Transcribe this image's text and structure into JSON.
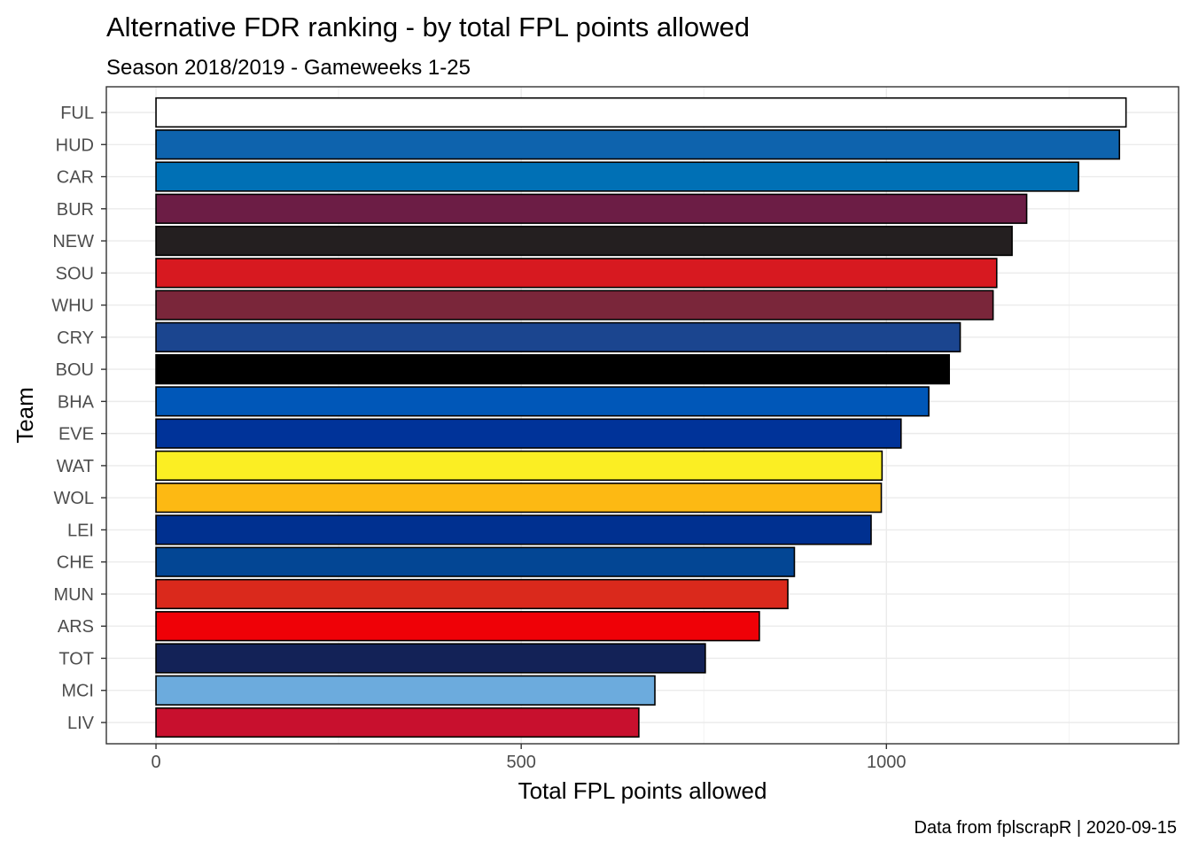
{
  "chart_data": {
    "type": "bar",
    "orientation": "horizontal",
    "title": "Alternative FDR ranking - by total FPL points allowed",
    "subtitle": "Season 2018/2019 - Gameweeks 1-25",
    "xlabel": "Total FPL points allowed",
    "ylabel": "Team",
    "caption": "Data from fplscrapR | 2020-09-15",
    "xlim": [
      -68,
      1400
    ],
    "x_ticks": [
      0,
      500,
      1000
    ],
    "grid": true,
    "legend": "none",
    "categories": [
      "FUL",
      "HUD",
      "CAR",
      "BUR",
      "NEW",
      "SOU",
      "WHU",
      "CRY",
      "BOU",
      "BHA",
      "EVE",
      "WAT",
      "WOL",
      "LEI",
      "CHE",
      "MUN",
      "ARS",
      "TOT",
      "MCI",
      "LIV"
    ],
    "values": [
      1328,
      1319,
      1263,
      1192,
      1172,
      1151,
      1146,
      1101,
      1086,
      1058,
      1020,
      994,
      993,
      979,
      874,
      865,
      826,
      752,
      683,
      661
    ],
    "colors": [
      "#ffffff",
      "#0e63ad",
      "#0070b5",
      "#6c1d45",
      "#241f20",
      "#d71920",
      "#7a263a",
      "#1b458f",
      "#000000",
      "#0057b8",
      "#003399",
      "#fbee23",
      "#fdb913",
      "#003090",
      "#034694",
      "#da291c",
      "#ef0107",
      "#132257",
      "#6cabdd",
      "#c8102e"
    ]
  }
}
